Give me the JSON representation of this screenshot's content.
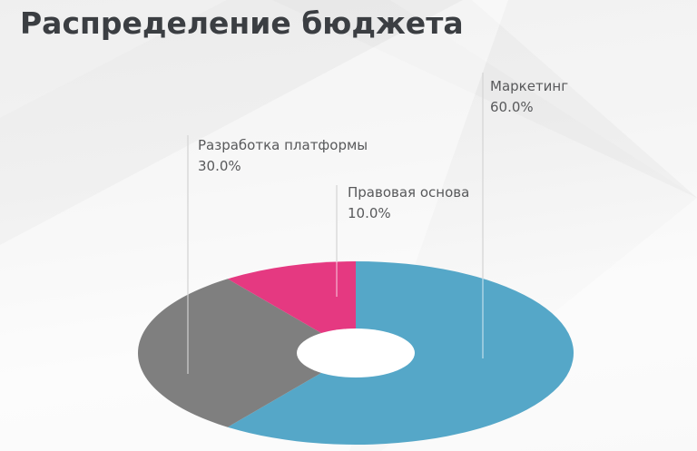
{
  "chart_data": {
    "type": "pie",
    "donut": true,
    "title": "Распределение бюджета",
    "start_angle": "top",
    "direction": "clockwise",
    "legend_position": "none",
    "label_style": "callout labels with percent, leader lines",
    "slices": [
      {
        "label": "Маркетинг",
        "value": 60.0,
        "percent_label": "60.0%",
        "color": "#55A7C8"
      },
      {
        "label": "Разработка платформы",
        "value": 30.0,
        "percent_label": "30.0%",
        "color": "#7F7F7F"
      },
      {
        "label": "Правовая основа",
        "value": 10.0,
        "percent_label": "10.0%",
        "color": "#E53981"
      }
    ],
    "hole_color": "#FFFFFF"
  },
  "style_colors": {
    "title_text": "#3B3E42",
    "label_text": "#58595B",
    "background_top": "#EBEBEB",
    "background_bottom": "#F9F9F9",
    "leader_line_outside": "#D8D8D8",
    "leader_line_inside": "rgba(255,255,255,0.55)"
  }
}
